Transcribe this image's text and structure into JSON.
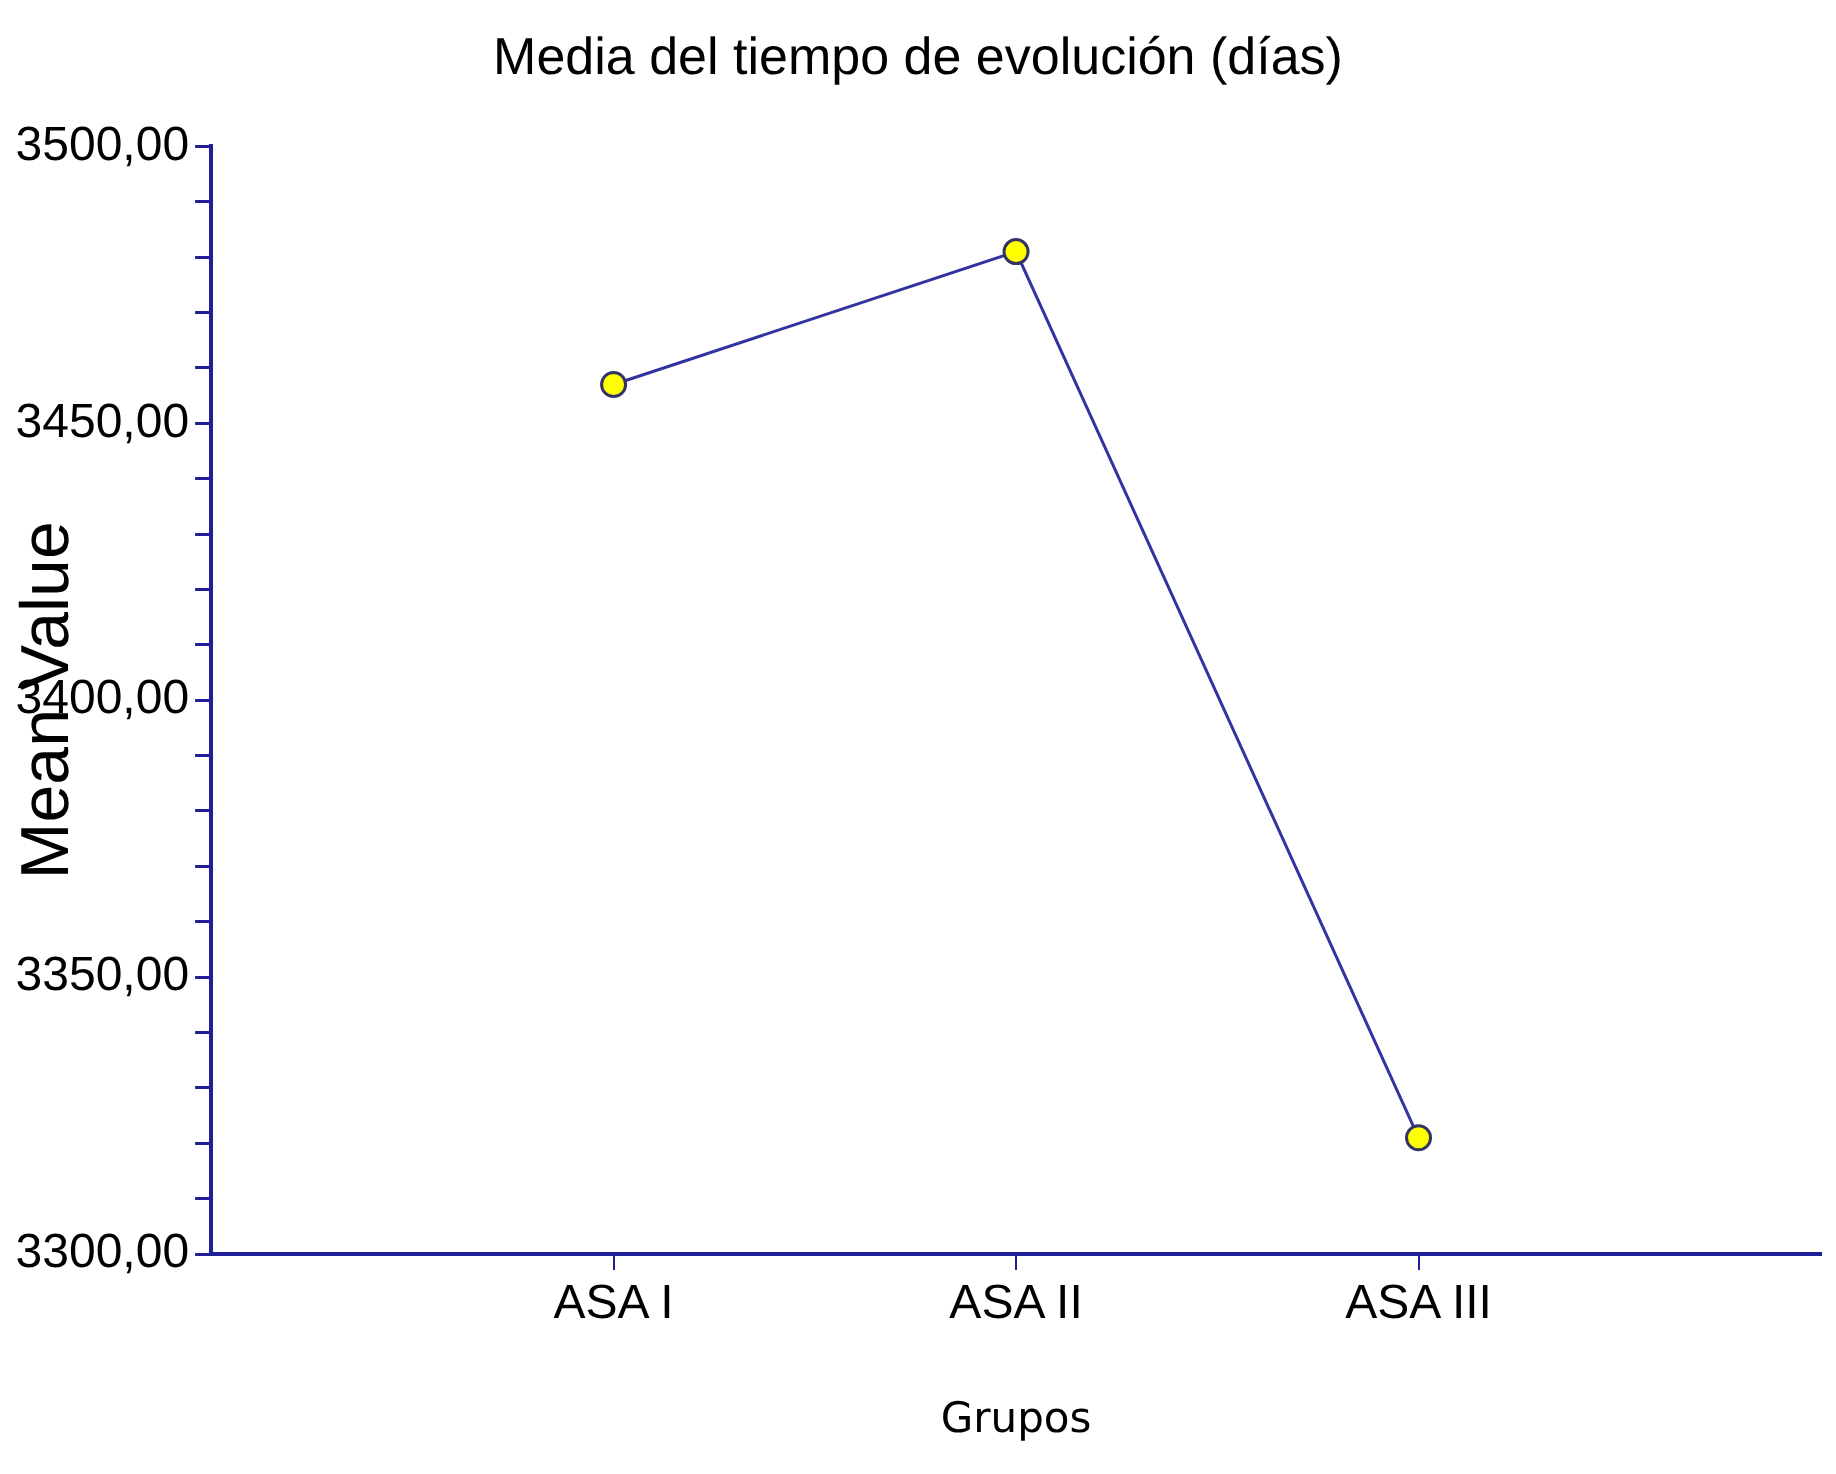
{
  "chart_data": {
    "type": "line",
    "title": "Media del tiempo de evolución (días)",
    "xlabel": "Grupos",
    "ylabel": "Mean Value",
    "categories": [
      "ASA I",
      "ASA II",
      "ASA III"
    ],
    "series": [
      {
        "color": "#3333a0",
        "values": [
          3457,
          3481,
          3321
        ]
      }
    ],
    "marker": "circle",
    "line_style": "solid",
    "grid": false,
    "legend": false,
    "ylim": [
      3300,
      3500
    ],
    "yticks": [
      {
        "value": 3300,
        "label": "3300,00"
      },
      {
        "value": 3310,
        "label": null
      },
      {
        "value": 3320,
        "label": null
      },
      {
        "value": 3330,
        "label": null
      },
      {
        "value": 3340,
        "label": null
      },
      {
        "value": 3350,
        "label": "3350,00"
      },
      {
        "value": 3360,
        "label": null
      },
      {
        "value": 3370,
        "label": null
      },
      {
        "value": 3380,
        "label": null
      },
      {
        "value": 3390,
        "label": null
      },
      {
        "value": 3400,
        "label": "3400,00"
      },
      {
        "value": 3410,
        "label": null
      },
      {
        "value": 3420,
        "label": null
      },
      {
        "value": 3430,
        "label": null
      },
      {
        "value": 3440,
        "label": null
      },
      {
        "value": 3450,
        "label": "3450,00"
      },
      {
        "value": 3460,
        "label": null
      },
      {
        "value": 3470,
        "label": null
      },
      {
        "value": 3480,
        "label": null
      },
      {
        "value": 3490,
        "label": null
      },
      {
        "value": 3500,
        "label": "3500,00"
      }
    ]
  }
}
